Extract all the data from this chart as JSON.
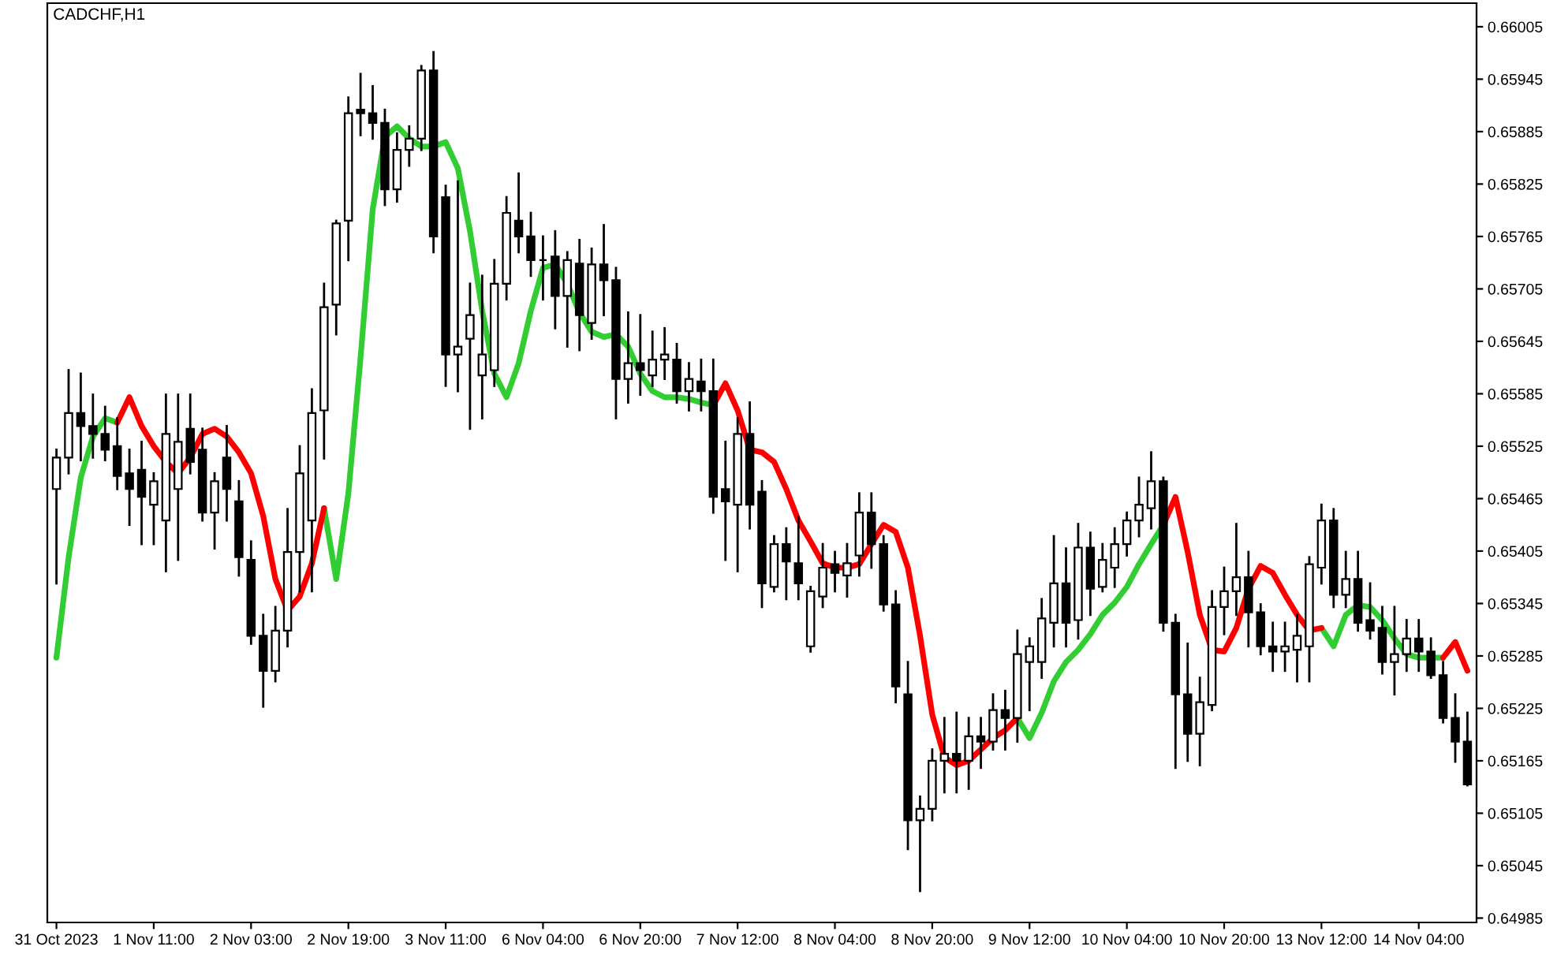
{
  "chart_data": {
    "type": "candlestick",
    "title": "CADCHF,H1",
    "categories": [
      "31 Oct 2023",
      null,
      null,
      null,
      null,
      null,
      null,
      null,
      "1 Nov 11:00",
      null,
      null,
      null,
      null,
      null,
      null,
      null,
      "2 Nov 03:00",
      null,
      null,
      null,
      null,
      null,
      null,
      null,
      "2 Nov 19:00",
      null,
      null,
      null,
      null,
      null,
      null,
      null,
      "3 Nov 11:00",
      null,
      null,
      null,
      null,
      null,
      null,
      null,
      "6 Nov 04:00",
      null,
      null,
      null,
      null,
      null,
      null,
      null,
      "6 Nov 20:00",
      null,
      null,
      null,
      null,
      null,
      null,
      null,
      "7 Nov 12:00",
      null,
      null,
      null,
      null,
      null,
      null,
      null,
      "8 Nov 04:00",
      null,
      null,
      null,
      null,
      null,
      null,
      null,
      "8 Nov 20:00",
      null,
      null,
      null,
      null,
      null,
      null,
      null,
      "9 Nov 12:00",
      null,
      null,
      null,
      null,
      null,
      null,
      null,
      "10 Nov 04:00",
      null,
      null,
      null,
      null,
      null,
      null,
      null,
      "10 Nov 20:00",
      null,
      null,
      null,
      null,
      null,
      null,
      null,
      "13 Nov 12:00",
      null,
      null,
      null,
      null,
      null,
      null,
      null,
      "14 Nov 04:00",
      null,
      null,
      null,
      null
    ],
    "ohlc": [
      [
        0.65476,
        0.65521,
        0.65368,
        0.65512
      ],
      [
        0.65512,
        0.65612,
        0.65494,
        0.65563
      ],
      [
        0.65563,
        0.65608,
        0.65509,
        0.65548
      ],
      [
        0.65548,
        0.65584,
        0.65512,
        0.65539
      ],
      [
        0.65539,
        0.6557,
        0.65509,
        0.65521
      ],
      [
        0.65525,
        0.65557,
        0.65476,
        0.65491
      ],
      [
        0.65494,
        0.65521,
        0.65435,
        0.65476
      ],
      [
        0.65498,
        0.6553,
        0.65413,
        0.65467
      ],
      [
        0.65458,
        0.65494,
        0.65413,
        0.65485
      ],
      [
        0.6544,
        0.65584,
        0.65382,
        0.65539
      ],
      [
        0.65476,
        0.65584,
        0.65395,
        0.6553
      ],
      [
        0.65545,
        0.65584,
        0.65494,
        0.65507
      ],
      [
        0.65521,
        0.65545,
        0.6544,
        0.65449
      ],
      [
        0.65449,
        0.65494,
        0.65408,
        0.65485
      ],
      [
        0.65512,
        0.65548,
        0.6544,
        0.65476
      ],
      [
        0.65462,
        0.65485,
        0.65377,
        0.65398
      ],
      [
        0.65395,
        0.65416,
        0.65299,
        0.65308
      ],
      [
        0.65308,
        0.65332,
        0.65227,
        0.65268
      ],
      [
        0.65268,
        0.65341,
        0.65256,
        0.65314
      ],
      [
        0.65314,
        0.65453,
        0.65296,
        0.65404
      ],
      [
        0.65404,
        0.65525,
        0.65359,
        0.65494
      ],
      [
        0.6544,
        0.6559,
        0.65359,
        0.65563
      ],
      [
        0.65566,
        0.65711,
        0.65511,
        0.65684
      ],
      [
        0.65687,
        0.65783,
        0.65653,
        0.6578
      ],
      [
        0.65783,
        0.65924,
        0.65738,
        0.65906
      ],
      [
        0.6591,
        0.65951,
        0.65881,
        0.65906
      ],
      [
        0.65906,
        0.65937,
        0.65877,
        0.65895
      ],
      [
        0.65895,
        0.6591,
        0.65801,
        0.65819
      ],
      [
        0.65819,
        0.65883,
        0.65805,
        0.65864
      ],
      [
        0.65864,
        0.65891,
        0.65846,
        0.65877
      ],
      [
        0.65877,
        0.6596,
        0.65864,
        0.65955
      ],
      [
        0.65955,
        0.65976,
        0.65747,
        0.65765
      ],
      [
        0.6581,
        0.65823,
        0.65594,
        0.6563
      ],
      [
        0.6563,
        0.65828,
        0.65588,
        0.65639
      ],
      [
        0.65648,
        0.65711,
        0.65545,
        0.65675
      ],
      [
        0.65606,
        0.6572,
        0.65557,
        0.6563
      ],
      [
        0.65612,
        0.65738,
        0.65594,
        0.65711
      ],
      [
        0.65711,
        0.6581,
        0.65693,
        0.65792
      ],
      [
        0.65783,
        0.65837,
        0.65747,
        0.65765
      ],
      [
        0.65765,
        0.65792,
        0.6572,
        0.65738
      ],
      [
        0.65738,
        0.65765,
        0.65693,
        0.65738
      ],
      [
        0.65742,
        0.65771,
        0.6566,
        0.65697
      ],
      [
        0.65697,
        0.65747,
        0.65639,
        0.65738
      ],
      [
        0.65734,
        0.65761,
        0.65635,
        0.65675
      ],
      [
        0.65666,
        0.65751,
        0.65648,
        0.65733
      ],
      [
        0.65733,
        0.65778,
        0.65675,
        0.65715
      ],
      [
        0.65715,
        0.65729,
        0.65557,
        0.65602
      ],
      [
        0.65602,
        0.65678,
        0.65575,
        0.6562
      ],
      [
        0.6562,
        0.65675,
        0.65584,
        0.65612
      ],
      [
        0.65606,
        0.65656,
        0.65594,
        0.65624
      ],
      [
        0.65624,
        0.6566,
        0.65602,
        0.6563
      ],
      [
        0.65624,
        0.65642,
        0.65575,
        0.65588
      ],
      [
        0.65588,
        0.6562,
        0.65566,
        0.65602
      ],
      [
        0.65599,
        0.65624,
        0.65566,
        0.65588
      ],
      [
        0.65588,
        0.65624,
        0.65449,
        0.65467
      ],
      [
        0.65476,
        0.6553,
        0.65395,
        0.65462
      ],
      [
        0.65458,
        0.65557,
        0.65382,
        0.65539
      ],
      [
        0.65539,
        0.65575,
        0.65431,
        0.65458
      ],
      [
        0.65473,
        0.65485,
        0.65341,
        0.65368
      ],
      [
        0.65364,
        0.65422,
        0.65359,
        0.65413
      ],
      [
        0.65413,
        0.65431,
        0.6535,
        0.65393
      ],
      [
        0.65391,
        0.65444,
        0.6535,
        0.65368
      ],
      [
        0.65296,
        0.65364,
        0.6529,
        0.65359
      ],
      [
        0.65353,
        0.65413,
        0.65341,
        0.65386
      ],
      [
        0.6539,
        0.65404,
        0.65359,
        0.6538
      ],
      [
        0.65377,
        0.65413,
        0.65353,
        0.65391
      ],
      [
        0.654,
        0.65471,
        0.65377,
        0.65449
      ],
      [
        0.65449,
        0.65471,
        0.65386,
        0.65413
      ],
      [
        0.65413,
        0.65422,
        0.65337,
        0.65344
      ],
      [
        0.65344,
        0.65359,
        0.65232,
        0.6525
      ],
      [
        0.65241,
        0.65278,
        0.65064,
        0.65097
      ],
      [
        0.65097,
        0.65124,
        0.65016,
        0.6511
      ],
      [
        0.6511,
        0.65178,
        0.65097,
        0.65165
      ],
      [
        0.65165,
        0.65214,
        0.65129,
        0.65173
      ],
      [
        0.65173,
        0.6522,
        0.65129,
        0.65165
      ],
      [
        0.65165,
        0.65214,
        0.65133,
        0.65193
      ],
      [
        0.65193,
        0.65214,
        0.65157,
        0.65187
      ],
      [
        0.65187,
        0.65241,
        0.65178,
        0.65223
      ],
      [
        0.65223,
        0.65245,
        0.65178,
        0.65214
      ],
      [
        0.65214,
        0.65314,
        0.65187,
        0.65287
      ],
      [
        0.65278,
        0.65305,
        0.65223,
        0.65296
      ],
      [
        0.65278,
        0.6535,
        0.6526,
        0.65328
      ],
      [
        0.65323,
        0.65422,
        0.65296,
        0.65368
      ],
      [
        0.65368,
        0.65408,
        0.65296,
        0.65323
      ],
      [
        0.65326,
        0.65436,
        0.65305,
        0.65409
      ],
      [
        0.65409,
        0.65426,
        0.65332,
        0.65362
      ],
      [
        0.65364,
        0.65413,
        0.65359,
        0.65395
      ],
      [
        0.65386,
        0.65431,
        0.65364,
        0.65413
      ],
      [
        0.65413,
        0.65449,
        0.654,
        0.6544
      ],
      [
        0.6544,
        0.65489,
        0.65422,
        0.65458
      ],
      [
        0.65454,
        0.65518,
        0.65431,
        0.65485
      ],
      [
        0.65485,
        0.65489,
        0.65314,
        0.65323
      ],
      [
        0.65323,
        0.65332,
        0.65157,
        0.65241
      ],
      [
        0.65241,
        0.65299,
        0.65165,
        0.65196
      ],
      [
        0.65196,
        0.6526,
        0.6516,
        0.65232
      ],
      [
        0.65229,
        0.65359,
        0.65223,
        0.65341
      ],
      [
        0.65341,
        0.65386,
        0.6531,
        0.65359
      ],
      [
        0.65359,
        0.65436,
        0.65332,
        0.65375
      ],
      [
        0.65375,
        0.65404,
        0.65296,
        0.65335
      ],
      [
        0.65335,
        0.65344,
        0.65287,
        0.65296
      ],
      [
        0.65296,
        0.65323,
        0.65268,
        0.6529
      ],
      [
        0.6529,
        0.65323,
        0.65268,
        0.65296
      ],
      [
        0.65292,
        0.65332,
        0.65256,
        0.65308
      ],
      [
        0.65296,
        0.65398,
        0.65256,
        0.6539
      ],
      [
        0.65386,
        0.65458,
        0.65368,
        0.6544
      ],
      [
        0.6544,
        0.65453,
        0.65341,
        0.65355
      ],
      [
        0.65355,
        0.65404,
        0.65341,
        0.65373
      ],
      [
        0.65373,
        0.65404,
        0.65314,
        0.65323
      ],
      [
        0.65326,
        0.65368,
        0.65305,
        0.65314
      ],
      [
        0.65317,
        0.65341,
        0.65265,
        0.65278
      ],
      [
        0.65278,
        0.65341,
        0.65241,
        0.65287
      ],
      [
        0.65287,
        0.65326,
        0.65268,
        0.65305
      ],
      [
        0.65305,
        0.65326,
        0.65268,
        0.6529
      ],
      [
        0.6529,
        0.65305,
        0.6526,
        0.65263
      ],
      [
        0.65263,
        0.65278,
        0.65209,
        0.65214
      ],
      [
        0.65214,
        0.65241,
        0.65164,
        0.65187
      ],
      [
        0.65187,
        0.6522,
        0.65137,
        0.65138
      ]
    ],
    "series": [
      {
        "type": "line",
        "color": "#32cd32",
        "values": [
          0.65283,
          0.65398,
          0.65489,
          0.65536,
          0.65557,
          0.65552,
          null,
          null,
          null,
          null,
          null,
          null,
          null,
          null,
          null,
          null,
          null,
          null,
          null,
          null,
          null,
          null,
          0.65454,
          0.65373,
          0.65471,
          0.65626,
          0.65796,
          0.65879,
          0.65891,
          0.65877,
          0.65868,
          0.65868,
          0.65873,
          0.65843,
          0.65771,
          0.6568,
          0.65608,
          0.65581,
          0.6562,
          0.6568,
          0.65729,
          0.65733,
          0.65711,
          0.65678,
          0.65656,
          0.6565,
          0.65653,
          0.65639,
          0.65608,
          0.65588,
          0.65581,
          0.65581,
          0.65579,
          0.65575,
          0.65572,
          null,
          null,
          null,
          null,
          null,
          null,
          null,
          null,
          null,
          null,
          null,
          null,
          null,
          null,
          null,
          null,
          null,
          null,
          null,
          null,
          null,
          null,
          null,
          null,
          0.65214,
          0.65191,
          0.6522,
          0.65256,
          0.65278,
          0.65292,
          0.6531,
          0.65332,
          0.65346,
          0.65364,
          0.6539,
          0.65413,
          0.65435,
          null,
          null,
          null,
          null,
          null,
          null,
          null,
          null,
          null,
          null,
          null,
          null,
          0.65317,
          0.65296,
          0.65332,
          0.65343,
          0.65341,
          0.65326,
          0.65305,
          0.65287,
          0.65283,
          0.65283,
          0.65283,
          null,
          null
        ]
      },
      {
        "type": "line",
        "color": "#ff0000",
        "values": [
          null,
          null,
          null,
          null,
          null,
          0.65552,
          0.65581,
          0.65548,
          0.65525,
          0.65507,
          0.65494,
          0.65512,
          0.65539,
          0.65545,
          0.65536,
          0.65518,
          0.65494,
          0.65445,
          0.65373,
          0.65337,
          0.65353,
          0.65391,
          0.65454,
          null,
          null,
          null,
          null,
          null,
          null,
          null,
          null,
          null,
          null,
          null,
          null,
          null,
          null,
          null,
          null,
          null,
          null,
          null,
          null,
          null,
          null,
          null,
          null,
          null,
          null,
          null,
          null,
          null,
          null,
          null,
          0.65572,
          0.65597,
          0.65566,
          0.65521,
          0.65518,
          0.65507,
          0.65476,
          0.6544,
          0.65416,
          0.65391,
          0.65386,
          0.65386,
          0.6539,
          0.65413,
          0.65435,
          0.65427,
          0.65386,
          0.65308,
          0.65218,
          0.65169,
          0.6516,
          0.65165,
          0.65178,
          0.65191,
          0.652,
          0.65214,
          null,
          null,
          null,
          null,
          null,
          null,
          null,
          null,
          null,
          null,
          null,
          0.65435,
          0.65467,
          0.65404,
          0.65332,
          0.65292,
          0.6529,
          0.65317,
          0.65362,
          0.65388,
          0.6538,
          0.65355,
          0.65332,
          0.65314,
          0.65317,
          null,
          null,
          null,
          null,
          null,
          null,
          null,
          null,
          null,
          0.65283,
          0.65301,
          0.65268
        ]
      }
    ],
    "ylim": [
      0.6498,
      0.66032
    ],
    "yticks": [
      0.64985,
      0.65045,
      0.65105,
      0.65165,
      0.65225,
      0.65285,
      0.65345,
      0.65405,
      0.65465,
      0.65525,
      0.65585,
      0.65645,
      0.65705,
      0.65765,
      0.65825,
      0.65885,
      0.65945,
      0.66005
    ]
  }
}
